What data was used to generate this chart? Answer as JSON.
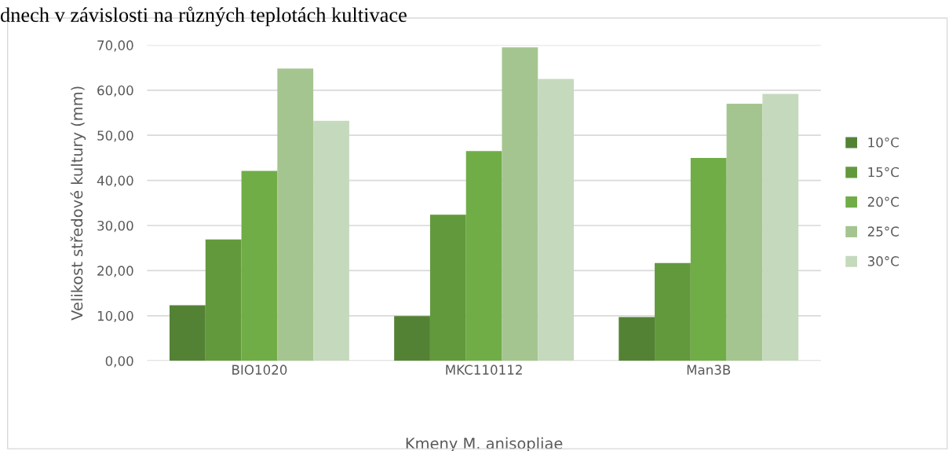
{
  "chart_data": {
    "type": "bar",
    "title": "dnech v závislosti na různých teplotách kultivace",
    "xlabel": "Kmeny M. anisopliae",
    "ylabel": "Velikost středové kultury (mm)",
    "categories": [
      "BIO1020",
      "MKC110112",
      "Man3B"
    ],
    "series": [
      {
        "name": "10°C",
        "color": "#548235",
        "values": [
          12.3,
          9.9,
          9.7
        ]
      },
      {
        "name": "15°C",
        "color": "#63993d",
        "values": [
          26.9,
          32.4,
          21.7
        ]
      },
      {
        "name": "20°C",
        "color": "#70ad47",
        "values": [
          42.1,
          46.5,
          45.0
        ]
      },
      {
        "name": "25°C",
        "color": "#a5c590",
        "values": [
          64.8,
          69.5,
          57.0
        ]
      },
      {
        "name": "30°C",
        "color": "#c5d9bd",
        "values": [
          53.2,
          62.5,
          59.2
        ]
      }
    ],
    "ylim": [
      0,
      70
    ],
    "yticks": [
      {
        "value": 0,
        "label": "0,00"
      },
      {
        "value": 10,
        "label": "10,00"
      },
      {
        "value": 20,
        "label": "20,00"
      },
      {
        "value": 30,
        "label": "30,00"
      },
      {
        "value": 40,
        "label": "40,00"
      },
      {
        "value": 50,
        "label": "50,00"
      },
      {
        "value": 60,
        "label": "60,00"
      },
      {
        "value": 70,
        "label": "70,00"
      }
    ],
    "grid": "y",
    "legend": "right"
  }
}
